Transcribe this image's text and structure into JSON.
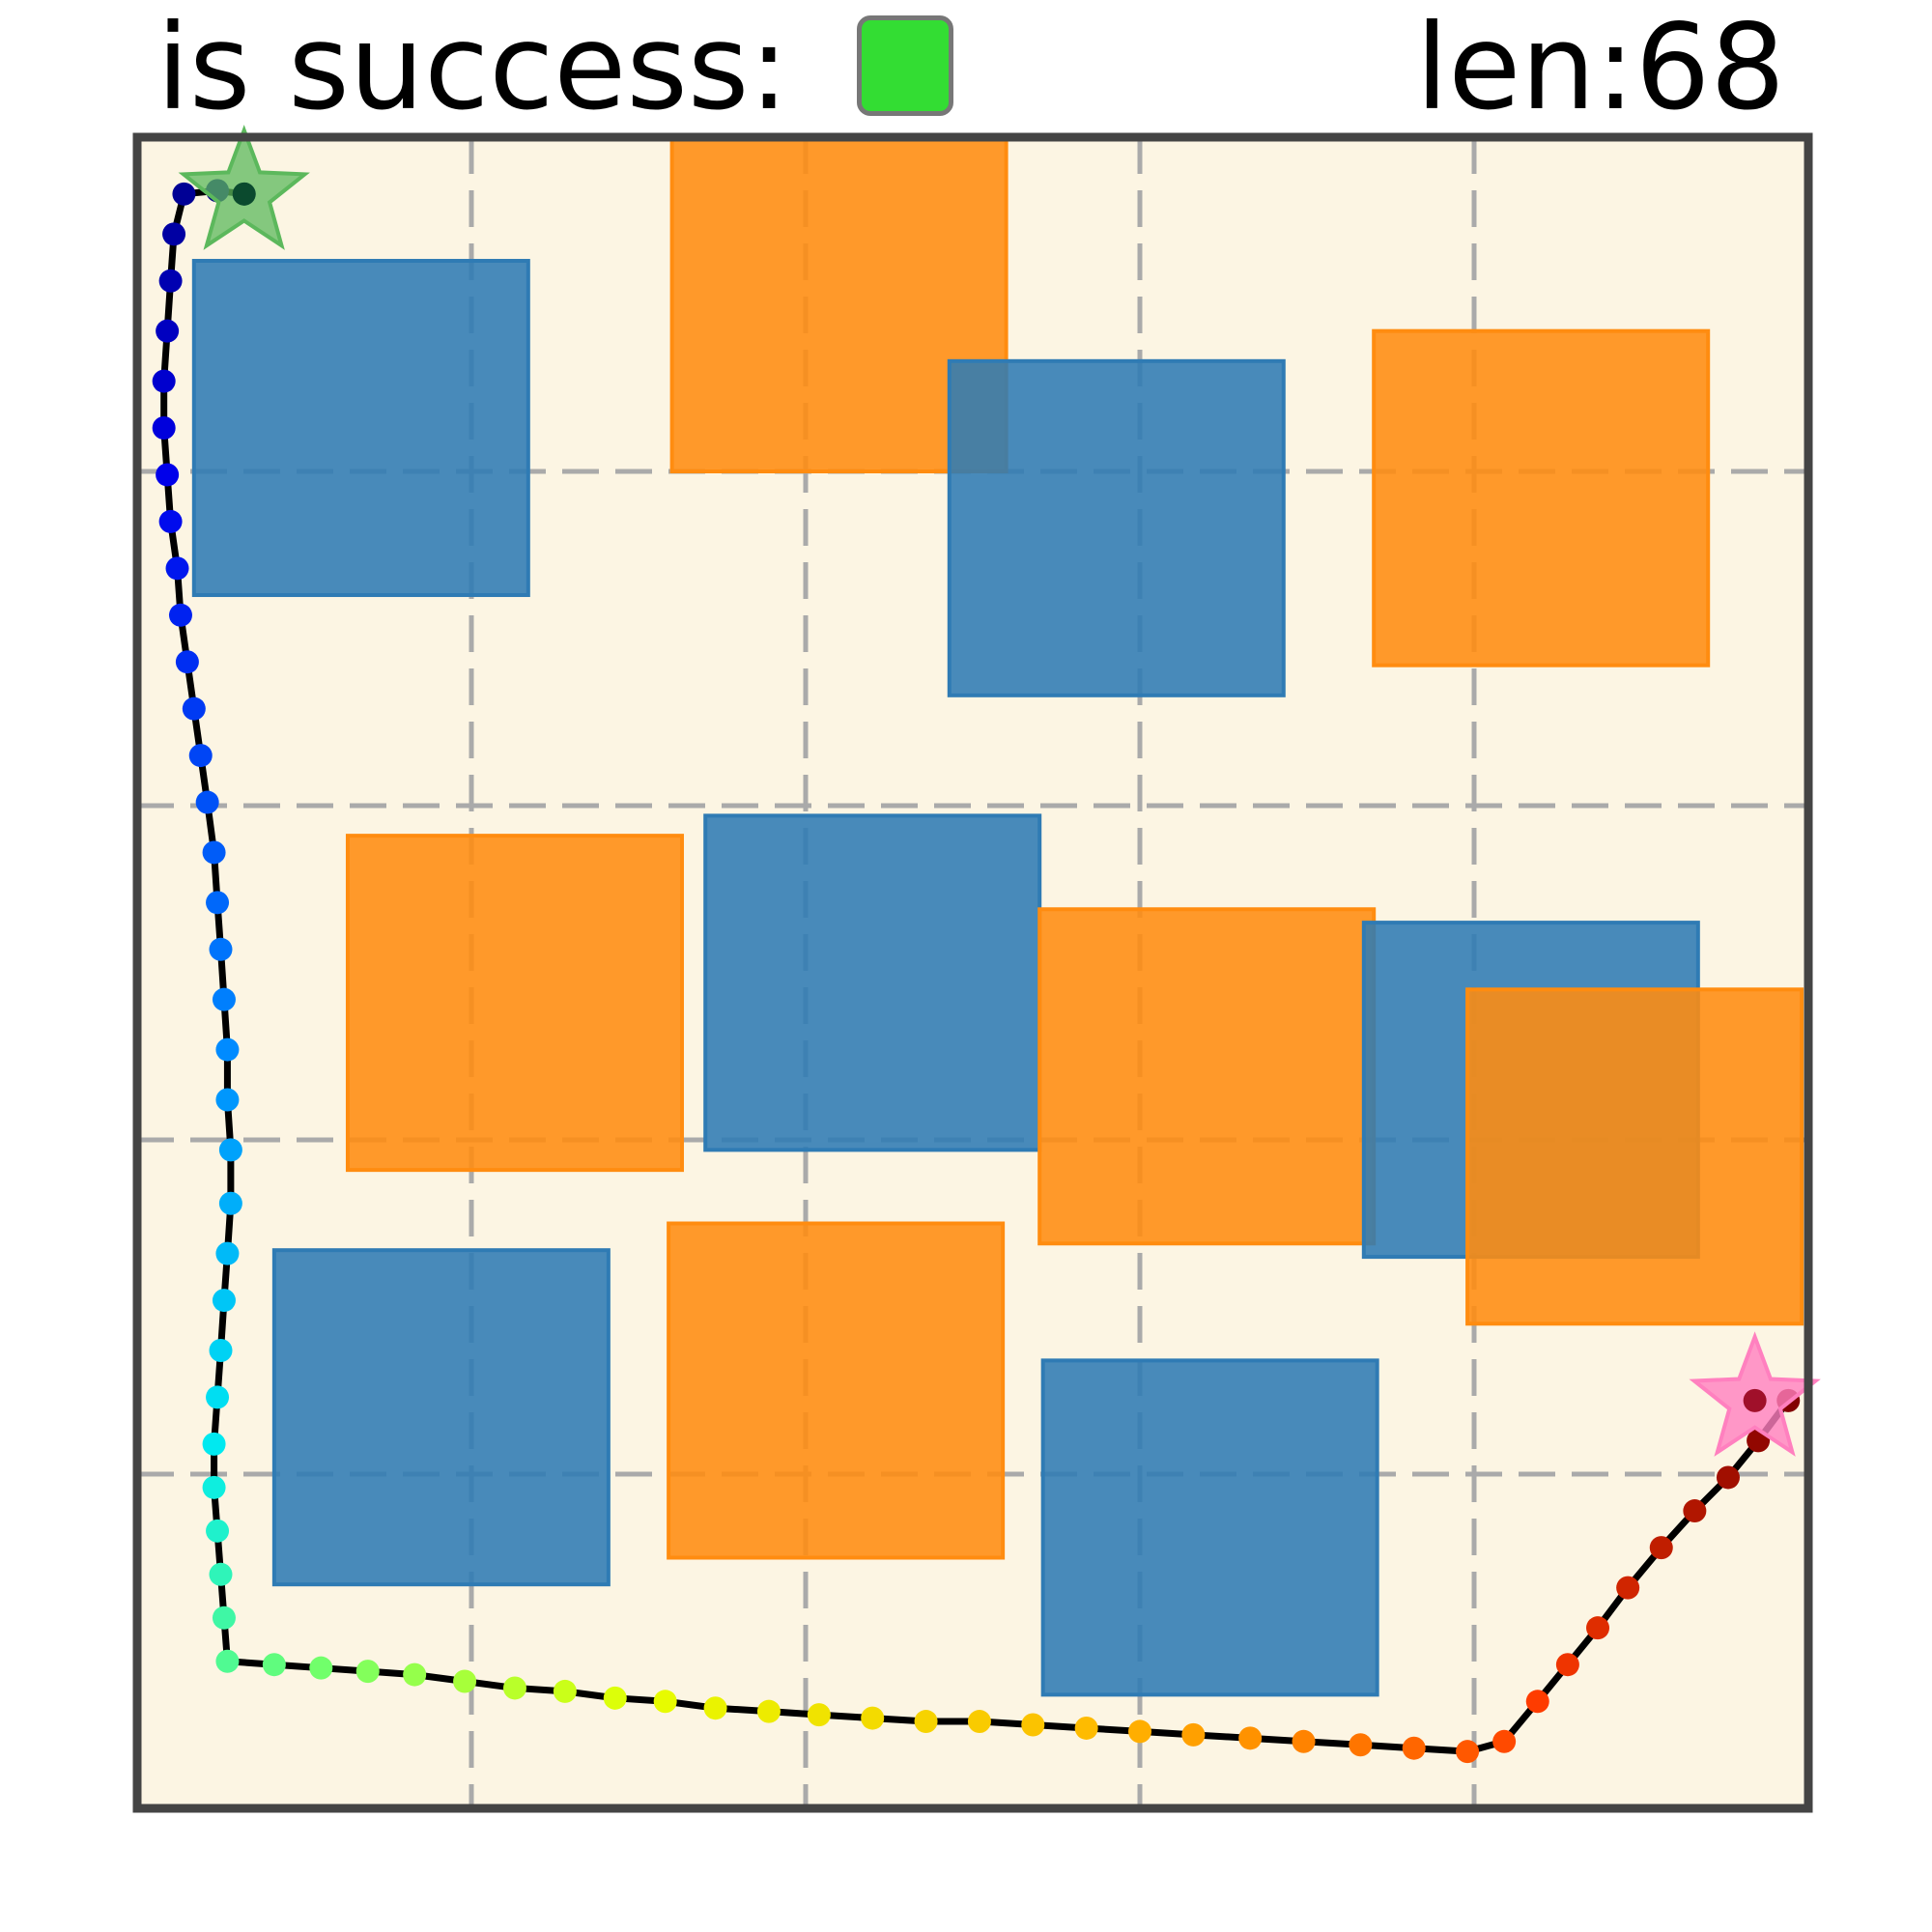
{
  "header": {
    "success_label": "is success:",
    "success": true,
    "success_color": "#33dd33",
    "length_label": "len:68"
  },
  "colors": {
    "background": "#fcf5e3",
    "grid": "#aaaaaa",
    "border": "#444444",
    "obstacle_blue": "#2f7bb4",
    "obstacle_orange": "#ff8c10",
    "start_star": "#5cb85c",
    "goal_star": "#ff80bf",
    "path_line": "#000000"
  },
  "map": {
    "x_range": [
      0,
      5
    ],
    "y_range": [
      0,
      5
    ],
    "grid_lines": [
      1,
      2,
      3,
      4
    ],
    "obstacles": [
      {
        "type": "blue",
        "x": 0.17,
        "y": 3.63,
        "w": 1.0,
        "h": 1.0
      },
      {
        "type": "orange",
        "x": 1.6,
        "y": 4.0,
        "w": 1.0,
        "h": 1.0
      },
      {
        "type": "blue",
        "x": 2.43,
        "y": 3.33,
        "w": 1.0,
        "h": 1.0
      },
      {
        "type": "orange",
        "x": 3.7,
        "y": 3.42,
        "w": 1.0,
        "h": 1.0
      },
      {
        "type": "orange",
        "x": 0.63,
        "y": 1.91,
        "w": 1.0,
        "h": 1.0
      },
      {
        "type": "blue",
        "x": 1.7,
        "y": 1.97,
        "w": 1.0,
        "h": 1.0
      },
      {
        "type": "orange",
        "x": 2.7,
        "y": 1.69,
        "w": 1.0,
        "h": 1.0
      },
      {
        "type": "blue",
        "x": 3.67,
        "y": 1.65,
        "w": 1.0,
        "h": 1.0
      },
      {
        "type": "orange",
        "x": 3.98,
        "y": 1.45,
        "w": 1.0,
        "h": 1.0
      },
      {
        "type": "blue",
        "x": 0.41,
        "y": 0.67,
        "w": 1.0,
        "h": 1.0
      },
      {
        "type": "orange",
        "x": 1.59,
        "y": 0.75,
        "w": 1.0,
        "h": 1.0
      },
      {
        "type": "blue",
        "x": 2.71,
        "y": 0.34,
        "w": 1.0,
        "h": 1.0
      }
    ],
    "start": {
      "x": 0.32,
      "y": 4.83
    },
    "goal": {
      "x": 4.84,
      "y": 1.22
    },
    "path": [
      [
        0.32,
        4.83
      ],
      [
        0.24,
        4.84
      ],
      [
        0.14,
        4.83
      ],
      [
        0.11,
        4.71
      ],
      [
        0.1,
        4.57
      ],
      [
        0.09,
        4.42
      ],
      [
        0.08,
        4.27
      ],
      [
        0.08,
        4.13
      ],
      [
        0.09,
        3.99
      ],
      [
        0.1,
        3.85
      ],
      [
        0.12,
        3.71
      ],
      [
        0.13,
        3.57
      ],
      [
        0.15,
        3.43
      ],
      [
        0.17,
        3.29
      ],
      [
        0.19,
        3.15
      ],
      [
        0.21,
        3.01
      ],
      [
        0.23,
        2.86
      ],
      [
        0.24,
        2.71
      ],
      [
        0.25,
        2.57
      ],
      [
        0.26,
        2.42
      ],
      [
        0.27,
        2.27
      ],
      [
        0.27,
        2.12
      ],
      [
        0.28,
        1.97
      ],
      [
        0.28,
        1.81
      ],
      [
        0.27,
        1.66
      ],
      [
        0.26,
        1.52
      ],
      [
        0.25,
        1.37
      ],
      [
        0.24,
        1.23
      ],
      [
        0.23,
        1.09
      ],
      [
        0.23,
        0.96
      ],
      [
        0.24,
        0.83
      ],
      [
        0.25,
        0.7
      ],
      [
        0.26,
        0.57
      ],
      [
        0.27,
        0.44
      ],
      [
        0.41,
        0.43
      ],
      [
        0.55,
        0.42
      ],
      [
        0.69,
        0.41
      ],
      [
        0.83,
        0.4
      ],
      [
        0.98,
        0.38
      ],
      [
        1.13,
        0.36
      ],
      [
        1.28,
        0.35
      ],
      [
        1.43,
        0.33
      ],
      [
        1.58,
        0.32
      ],
      [
        1.73,
        0.3
      ],
      [
        1.89,
        0.29
      ],
      [
        2.04,
        0.28
      ],
      [
        2.2,
        0.27
      ],
      [
        2.36,
        0.26
      ],
      [
        2.52,
        0.26
      ],
      [
        2.68,
        0.25
      ],
      [
        2.84,
        0.24
      ],
      [
        3.0,
        0.23
      ],
      [
        3.16,
        0.22
      ],
      [
        3.33,
        0.21
      ],
      [
        3.49,
        0.2
      ],
      [
        3.66,
        0.19
      ],
      [
        3.82,
        0.18
      ],
      [
        3.98,
        0.17
      ],
      [
        4.09,
        0.2
      ],
      [
        4.19,
        0.32
      ],
      [
        4.28,
        0.43
      ],
      [
        4.37,
        0.54
      ],
      [
        4.46,
        0.66
      ],
      [
        4.56,
        0.78
      ],
      [
        4.66,
        0.89
      ],
      [
        4.76,
        0.99
      ],
      [
        4.85,
        1.1
      ],
      [
        4.94,
        1.22
      ]
    ]
  }
}
